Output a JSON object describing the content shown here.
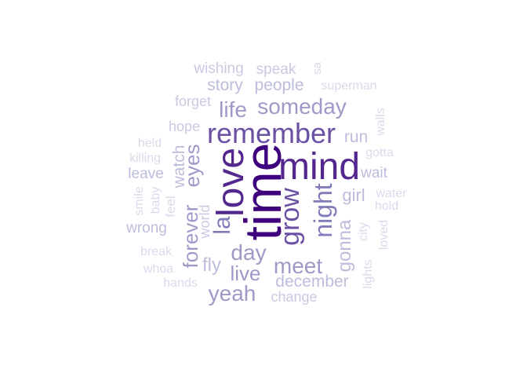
{
  "words": [
    {
      "text": "time",
      "color": "#3f007d"
    },
    {
      "text": "love",
      "color": "#54278f"
    },
    {
      "text": "mind",
      "color": "#54278f"
    },
    {
      "text": "remember",
      "color": "#6a51a3"
    },
    {
      "text": "grow",
      "color": "#6a51a3"
    },
    {
      "text": "night",
      "color": "#807dba"
    },
    {
      "text": "la",
      "color": "#807dba"
    },
    {
      "text": "someday",
      "color": "#9e9ac8"
    },
    {
      "text": "day",
      "color": "#9e9ac8"
    },
    {
      "text": "meet",
      "color": "#9e9ac8"
    },
    {
      "text": "eyes",
      "color": "#9e9ac8"
    },
    {
      "text": "forever",
      "color": "#9e9ac8"
    },
    {
      "text": "yeah",
      "color": "#9e9ac8"
    },
    {
      "text": "life",
      "color": "#9e9ac8"
    },
    {
      "text": "live",
      "color": "#9e9ac8"
    },
    {
      "text": "gonna",
      "color": "#bcbddc"
    },
    {
      "text": "fly",
      "color": "#bcbddc"
    },
    {
      "text": "story",
      "color": "#bcbddc"
    },
    {
      "text": "people",
      "color": "#bcbddc"
    },
    {
      "text": "december",
      "color": "#bcbddc"
    },
    {
      "text": "watch",
      "color": "#bcbddc"
    },
    {
      "text": "girl",
      "color": "#bcbddc"
    },
    {
      "text": "run",
      "color": "#bcbddc"
    },
    {
      "text": "wait",
      "color": "#bcbddc"
    },
    {
      "text": "leave",
      "color": "#bcbddc"
    },
    {
      "text": "wrong",
      "color": "#bcbddc"
    },
    {
      "text": "world",
      "color": "#cbc9e2"
    },
    {
      "text": "speak",
      "color": "#cbc9e2"
    },
    {
      "text": "wishing",
      "color": "#cbc9e2"
    },
    {
      "text": "forget",
      "color": "#cbc9e2"
    },
    {
      "text": "hope",
      "color": "#cbc9e2"
    },
    {
      "text": "change",
      "color": "#cbc9e2"
    },
    {
      "text": "feel",
      "color": "#dadaeb"
    },
    {
      "text": "lights",
      "color": "#dadaeb"
    },
    {
      "text": "gotta",
      "color": "#dadaeb"
    },
    {
      "text": "held",
      "color": "#dadaeb"
    },
    {
      "text": "killing",
      "color": "#dadaeb"
    },
    {
      "text": "baby",
      "color": "#dadaeb"
    },
    {
      "text": "smile",
      "color": "#dadaeb"
    },
    {
      "text": "break",
      "color": "#dadaeb"
    },
    {
      "text": "whoa",
      "color": "#dadaeb"
    },
    {
      "text": "hands",
      "color": "#dadaeb"
    },
    {
      "text": "city",
      "color": "#dadaeb"
    },
    {
      "text": "loved",
      "color": "#dadaeb"
    },
    {
      "text": "hold",
      "color": "#dadaeb"
    },
    {
      "text": "water",
      "color": "#dadaeb"
    },
    {
      "text": "walls",
      "color": "#dadaeb"
    },
    {
      "text": "superman",
      "color": "#dadaeb"
    },
    {
      "text": "sa",
      "color": "#dadaeb"
    }
  ]
}
